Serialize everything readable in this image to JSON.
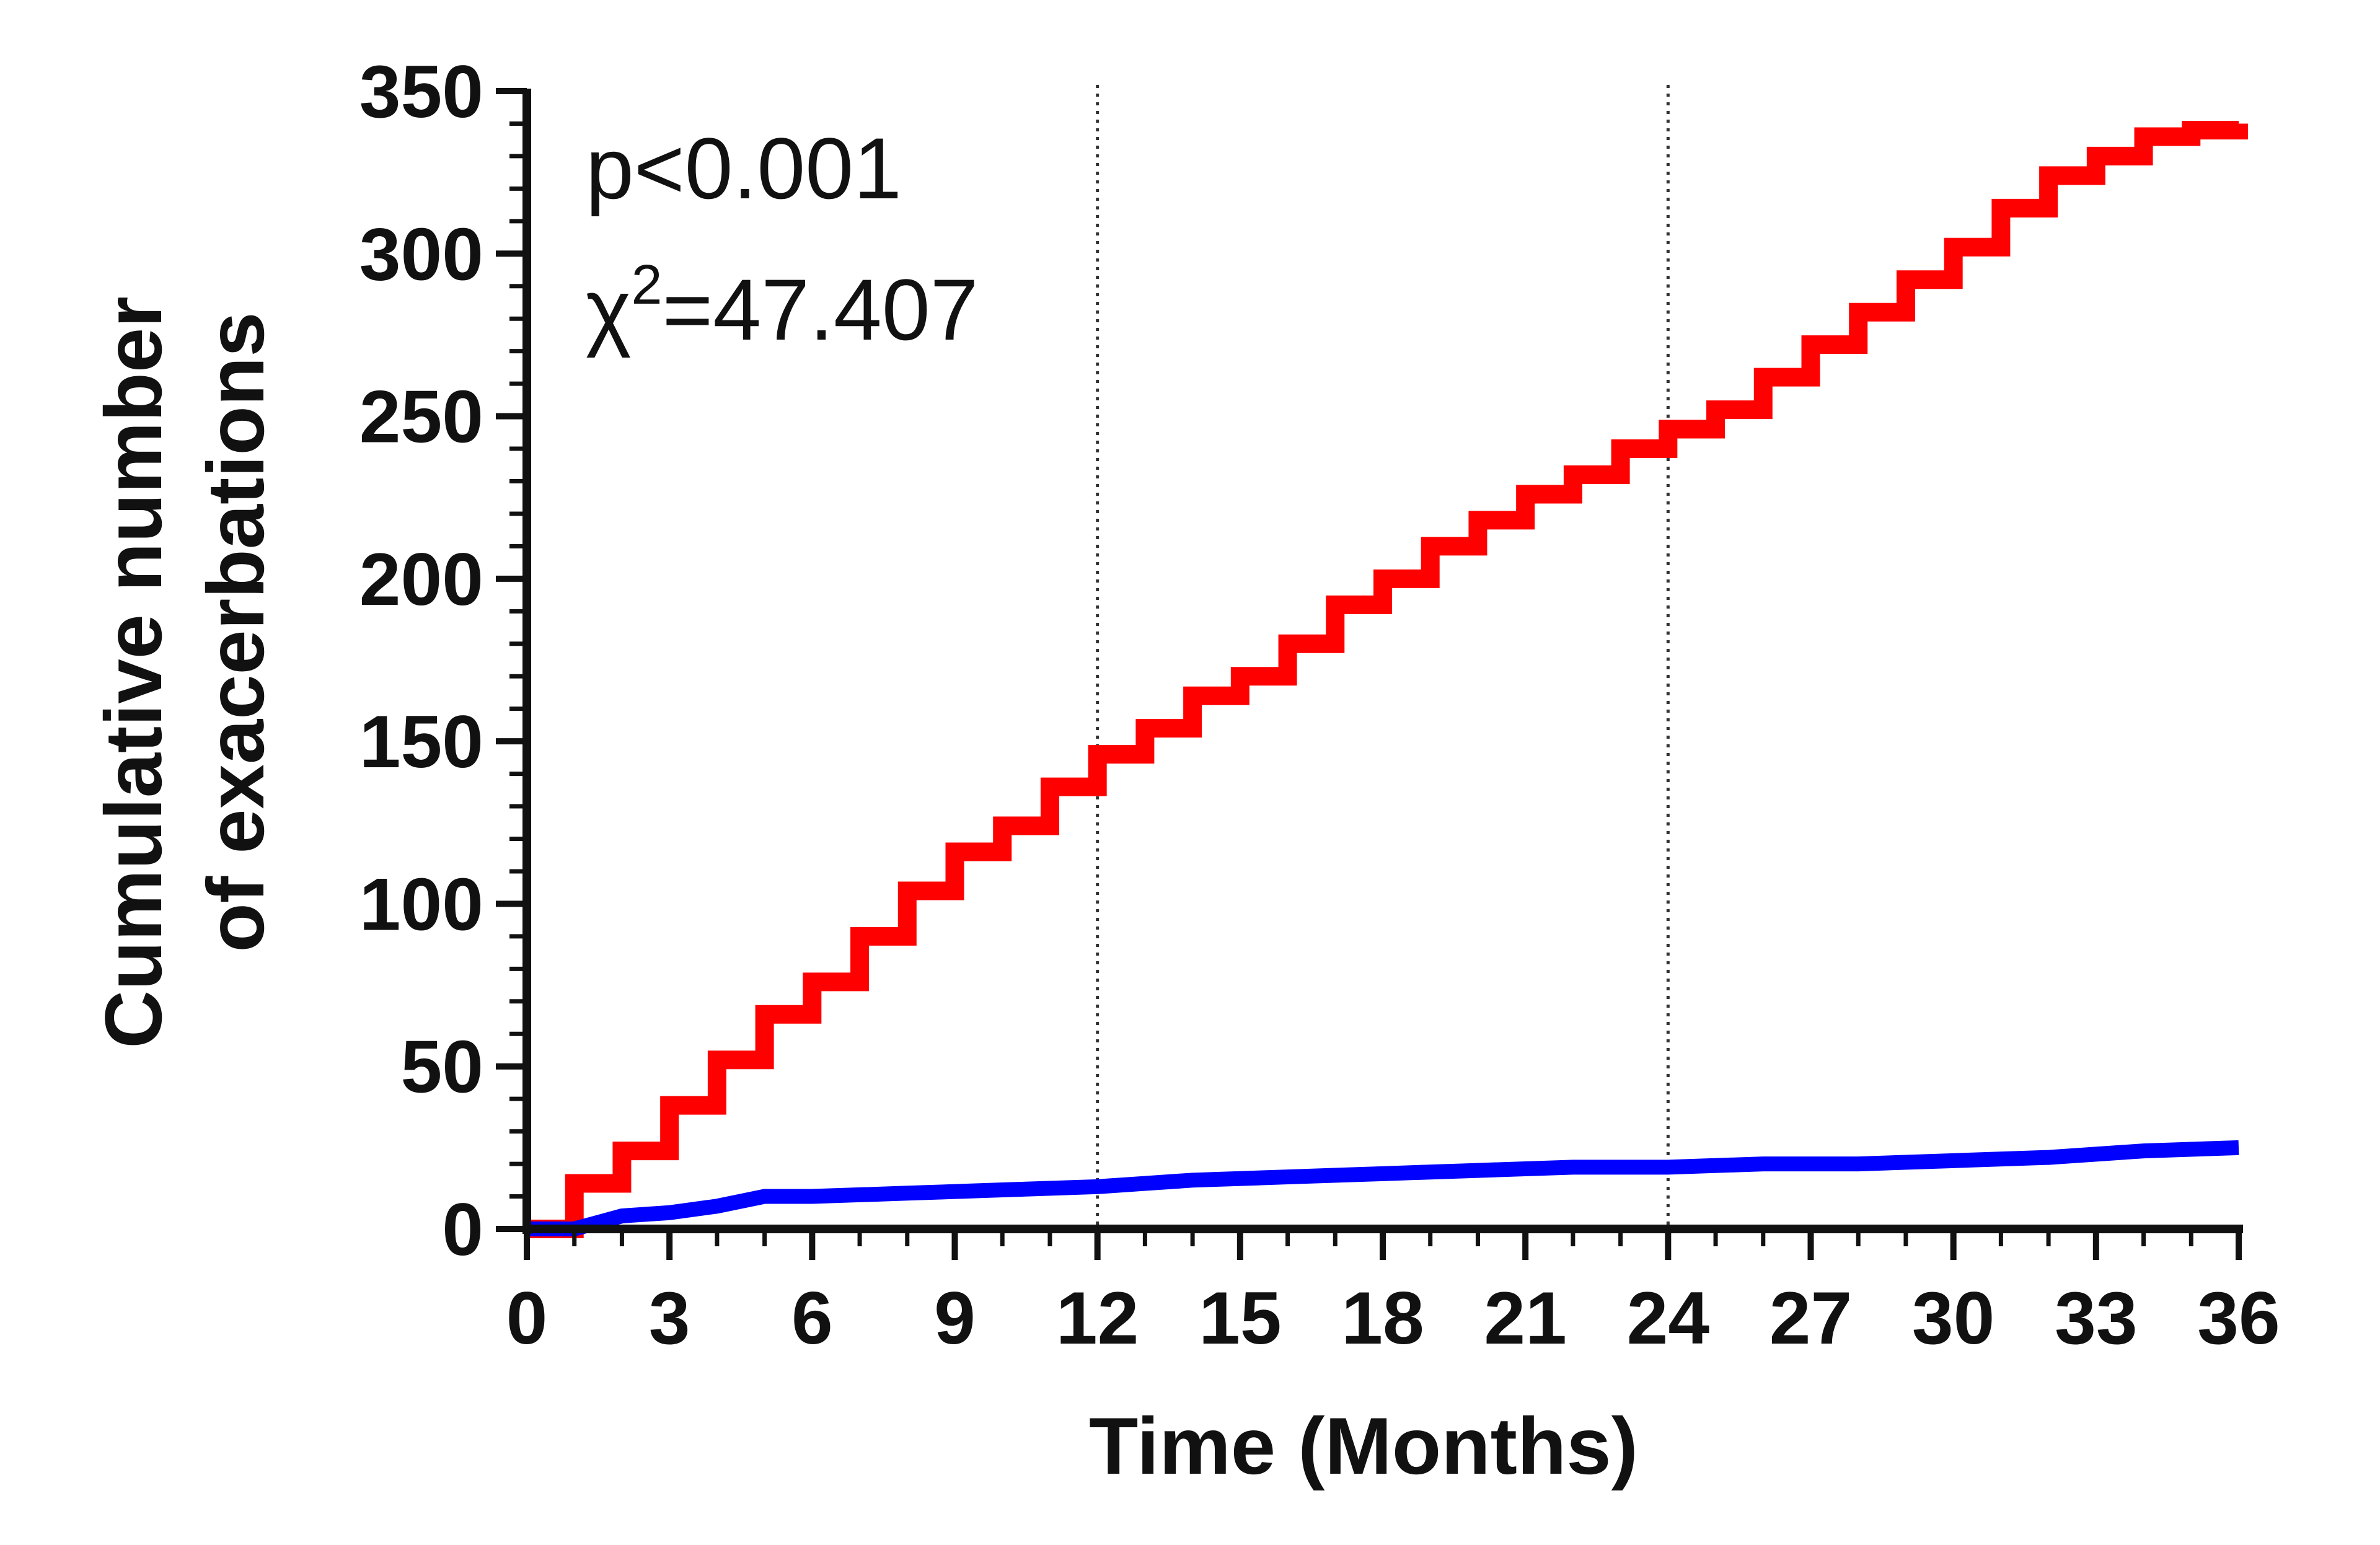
{
  "chart_data": {
    "type": "line",
    "title": "",
    "xlabel": "Time (Months)",
    "ylabel_lines": [
      "Cumulative number",
      "of exacerbations"
    ],
    "xlim": [
      0,
      36
    ],
    "ylim": [
      0,
      350
    ],
    "x_ticks": [
      0,
      3,
      6,
      9,
      12,
      15,
      18,
      21,
      24,
      27,
      30,
      33,
      36
    ],
    "y_ticks": [
      0,
      50,
      100,
      150,
      200,
      250,
      300,
      350
    ],
    "x_minor_step": 1,
    "y_minor_step": 10,
    "grid": false,
    "reference_lines_x": [
      12,
      24
    ],
    "annotations": {
      "p_value": "p<0.001",
      "chi_symbol": "χ",
      "chi_exponent": "2",
      "chi_value": "=47.407"
    },
    "series": [
      {
        "color": "#ff0000",
        "step": true,
        "x": [
          0,
          1,
          2,
          3,
          4,
          5,
          6,
          7,
          8,
          9,
          10,
          11,
          12,
          13,
          14,
          15,
          16,
          17,
          18,
          19,
          20,
          21,
          22,
          23,
          24,
          25,
          26,
          27,
          28,
          29,
          30,
          31,
          32,
          33,
          34,
          35,
          36
        ],
        "values": [
          0,
          14,
          24,
          38,
          52,
          66,
          76,
          90,
          104,
          116,
          124,
          136,
          146,
          154,
          164,
          170,
          180,
          192,
          200,
          210,
          218,
          226,
          232,
          240,
          246,
          252,
          262,
          272,
          282,
          292,
          302,
          314,
          324,
          330,
          336,
          338,
          340
        ]
      },
      {
        "color": "#0000ff",
        "step": false,
        "x": [
          0,
          1,
          2,
          3,
          4,
          5,
          6,
          8,
          10,
          12,
          13,
          14,
          16,
          18,
          20,
          22,
          24,
          26,
          28,
          30,
          32,
          34,
          36
        ],
        "values": [
          0,
          0,
          4,
          5,
          7,
          10,
          10,
          11,
          12,
          13,
          14,
          15,
          16,
          17,
          18,
          19,
          19,
          20,
          20,
          21,
          22,
          24,
          25
        ]
      }
    ]
  }
}
